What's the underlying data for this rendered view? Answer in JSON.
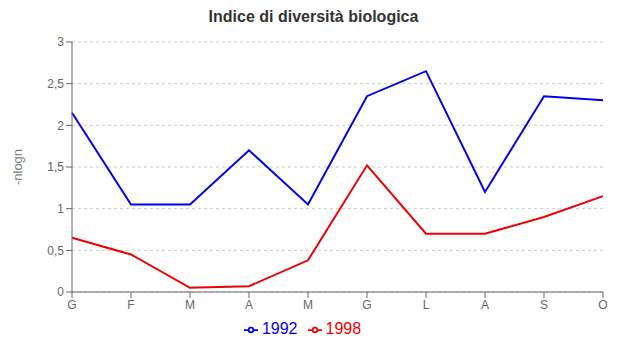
{
  "chart_data": {
    "type": "line",
    "title": "Indice di diversità biologica",
    "y_label": "-nlogn",
    "categories": [
      "G",
      "F",
      "M",
      "A",
      "M",
      "G",
      "L",
      "A",
      "S",
      "O"
    ],
    "series": [
      {
        "name": "1992",
        "color": "#0000EE",
        "values": [
          2.15,
          1.05,
          1.05,
          1.7,
          1.05,
          2.35,
          2.65,
          1.2,
          2.35,
          2.3
        ]
      },
      {
        "name": "1998",
        "color": "#EE0000",
        "values": [
          0.65,
          0.45,
          0.05,
          0.07,
          0.38,
          1.52,
          0.7,
          0.7,
          0.9,
          1.15
        ]
      }
    ],
    "ylim": [
      0,
      3
    ],
    "yticks": [
      0,
      {
        "value": 0.5,
        "label": "0,5"
      },
      1,
      {
        "value": 1.5,
        "label": "1,5"
      },
      2,
      {
        "value": 2.5,
        "label": "2,5"
      },
      3
    ],
    "grid": true,
    "legend": "bottom"
  }
}
